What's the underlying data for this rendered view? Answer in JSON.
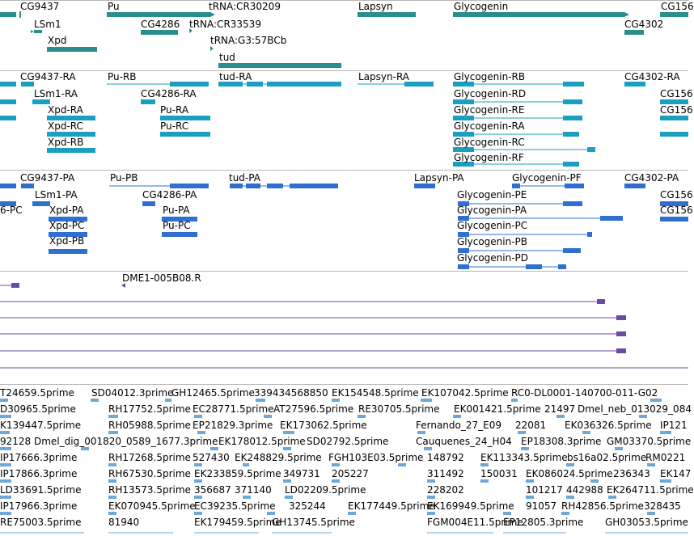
{
  "colors": {
    "gene": "#2a8e8e",
    "transcript": "#1a9fc0",
    "protein": "#2f6fd0",
    "cdna": "#6a4aa8",
    "est": "#6fa8d8",
    "separator": "#b8b8b8"
  },
  "tracks": {
    "genes": {
      "labels": [
        "CG9437",
        "Pu",
        "tRNA:CR30209",
        "Lapsyn",
        "Glycogenin",
        "CG156",
        "LSm1",
        "CG4286",
        "tRNA:CR33539",
        "CG4302",
        "Xpd",
        "tRNA:G3:57BCb",
        "tud"
      ]
    },
    "transcripts": {
      "labels": [
        "CG9437-RA",
        "Pu-RB",
        "tud-RA",
        "Lapsyn-RA",
        "Glycogenin-RB",
        "CG4302-RA",
        "LSm1-RA",
        "CG4286-RA",
        "Glycogenin-RD",
        "CG156",
        "Xpd-RA",
        "Pu-RA",
        "Glycogenin-RE",
        "CG156",
        "Xpd-RC",
        "Pu-RC",
        "Glycogenin-RA",
        "Xpd-RB",
        "Glycogenin-RC",
        "Glycogenin-RF"
      ]
    },
    "proteins": {
      "labels": [
        "CG9437-PA",
        "Pu-PB",
        "tud-PA",
        "Lapsyn-PA",
        "Glycogenin-PF",
        "CG4302-PA",
        "LSm1-PA",
        "CG4286-PA",
        "Glycogenin-PE",
        "CG156",
        "6-PC",
        "Xpd-PA",
        "Pu-PA",
        "Glycogenin-PA",
        "CG156",
        "Xpd-PC",
        "Pu-PC",
        "Glycogenin-PC",
        "Xpd-PB",
        "Glycogenin-PB",
        "Glycogenin-PD"
      ]
    },
    "cdna": {
      "labels": [
        "DME1-005B08.R"
      ]
    },
    "est": {
      "rows": [
        [
          "T24659.5prime",
          "SD04012.3prime",
          "GH12465.5prime",
          "339434568850",
          "EK154548.5prime",
          "EK107042.5prime",
          "RC0-DL0001-140700-011-G02"
        ],
        [
          "D30965.5prime",
          "RH17752.5prime",
          "EC28771.5prime",
          "AT27596.5prime",
          "RE30705.5prime",
          "EK001421.5prime",
          "21497",
          "Dmel_neb_013029_084"
        ],
        [
          "K139447.5prime",
          "RH05988.5prime",
          "EP21829.3prime",
          "EK173062.5prime",
          "Fernando_27_E09",
          "22081",
          "EK036326.5prime",
          "IP121"
        ],
        [
          "92128",
          "Dmel_dig_001820_0589_1677.3prime",
          "EK178012.5prime",
          "SD02792.5prime",
          "Cauquenes_24_H04",
          "EP18308.3prime",
          "GM03370.5prime"
        ],
        [
          "IP17666.3prime",
          "RH17268.5prime",
          "527430",
          "EK248829.5prime",
          "FGH103E03.5prime",
          "148792",
          "EK113343.5prime",
          "bs16a02.5prime",
          "RM0221"
        ],
        [
          "IP17866.3prime",
          "RH67530.5prime",
          "EK233859.5prime",
          "349731",
          "205227",
          "311492",
          "150031",
          "EK086024.5prime",
          "236343",
          "EK147"
        ],
        [
          "LD33691.5prime",
          "RH13573.5prime",
          "356687",
          "371140",
          "LD02209.5prime",
          "228202",
          "101217",
          "442988",
          "EK264711.5prime"
        ],
        [
          "IP17966.3prime",
          "EK070945.5prime",
          "EC39235.5prime",
          "325244",
          "EK177449.5prime",
          "EK169949.5prime",
          "91057",
          "RH42856.5prime",
          "328435"
        ],
        [
          "RE75003.5prime",
          "81940",
          "EK179459.5prime",
          "GH13745.5prime",
          "FGM004E11.5prime",
          "EP12805.3prime",
          "GH03053.5prime"
        ]
      ]
    }
  }
}
